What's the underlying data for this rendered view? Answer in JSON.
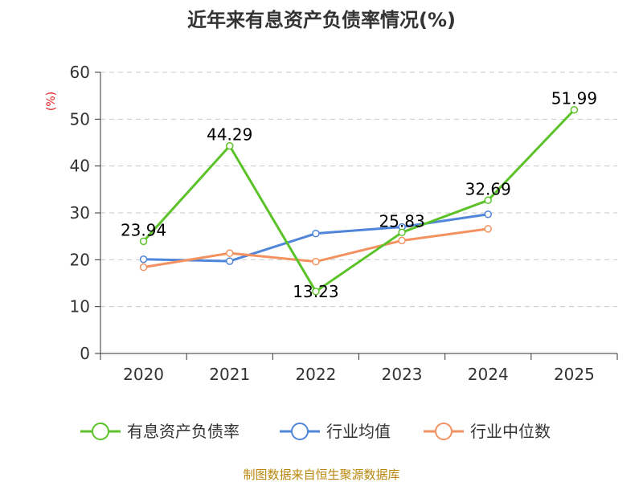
{
  "chart_data": {
    "type": "line",
    "title": "近年来有息资产负债率情况(%)",
    "ylabel": "(%)",
    "xlabel": "",
    "categories": [
      "2020",
      "2021",
      "2022",
      "2023",
      "2024",
      "2025"
    ],
    "ylim": [
      0,
      60
    ],
    "yticks": [
      0,
      10,
      20,
      30,
      40,
      50,
      60
    ],
    "grid": true,
    "legend_position": "bottom",
    "series": [
      {
        "name": "有息资产负债率",
        "color": "#5cc229",
        "values": [
          23.94,
          44.29,
          13.23,
          25.83,
          32.69,
          51.99
        ],
        "labels": [
          "23.94",
          "44.29",
          "13.23",
          "25.83",
          "32.69",
          "51.99"
        ]
      },
      {
        "name": "行业均值",
        "color": "#4f86d9",
        "values": [
          20.1,
          19.7,
          25.6,
          27.0,
          29.7,
          null
        ]
      },
      {
        "name": "行业中位数",
        "color": "#f39260",
        "values": [
          18.4,
          21.4,
          19.6,
          24.1,
          26.6,
          null
        ]
      }
    ],
    "source": "制图数据来自恒生聚源数据库"
  }
}
